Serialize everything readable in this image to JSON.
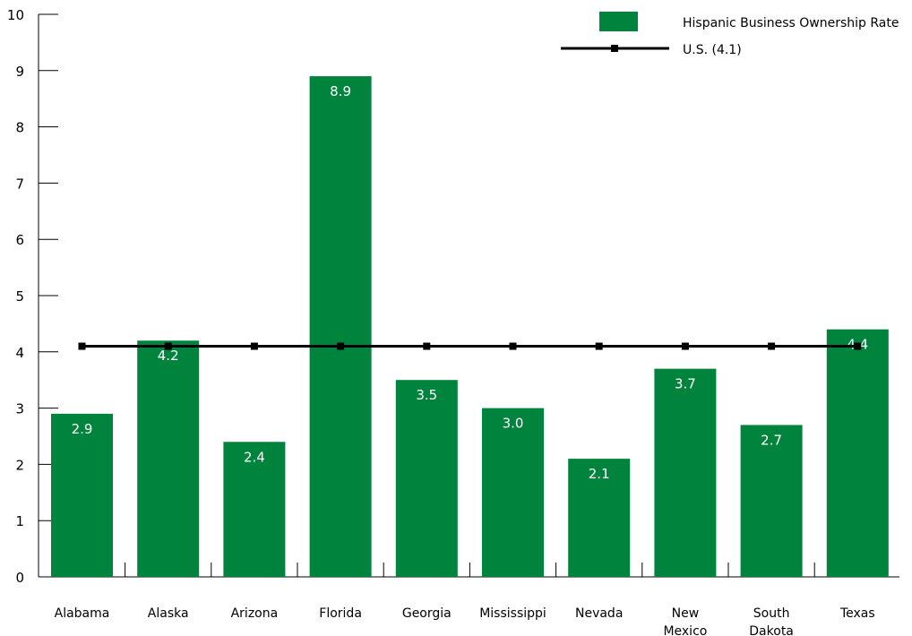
{
  "chart_data": {
    "type": "bar",
    "title": "",
    "xlabel": "",
    "ylabel": "",
    "ylim": [
      0,
      10
    ],
    "yticks": [
      "0",
      "1",
      "2",
      "3",
      "4",
      "5",
      "6",
      "7",
      "8",
      "9",
      "10"
    ],
    "grid": false,
    "legend_position": "top-right",
    "categories": [
      [
        "Alabama"
      ],
      [
        "Alaska"
      ],
      [
        "Arizona"
      ],
      [
        "Florida"
      ],
      [
        "Georgia"
      ],
      [
        "Mississippi"
      ],
      [
        "Nevada"
      ],
      [
        "New",
        "Mexico"
      ],
      [
        "South",
        "Dakota"
      ],
      [
        "Texas"
      ]
    ],
    "series": [
      {
        "name": "Hispanic Business Ownership Rate",
        "type": "bar",
        "color": "#00843d",
        "values": [
          2.9,
          4.2,
          2.4,
          8.9,
          3.5,
          3.0,
          2.1,
          3.7,
          2.7,
          4.4
        ],
        "data_labels": [
          "2.9",
          "4.2",
          "2.4",
          "8.9",
          "3.5",
          "3.0",
          "2.1",
          "3.7",
          "2.7",
          "4.4"
        ]
      },
      {
        "name": "U.S. (4.1)",
        "type": "line",
        "color": "#000000",
        "value": 4.1
      }
    ]
  }
}
